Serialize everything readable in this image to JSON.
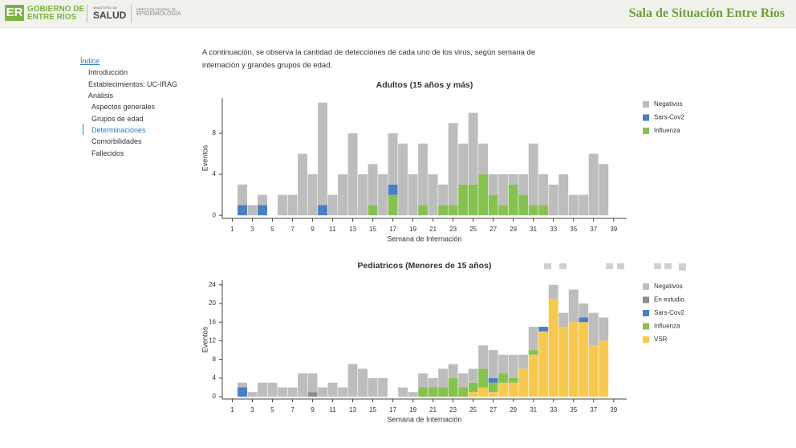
{
  "header": {
    "logo_mark": "ER",
    "gov_line1": "GOBIERNO DE",
    "gov_line2": "ENTRE RÍOS",
    "ministry_small": "MINISTERIO DE",
    "ministry": "SALUD",
    "direction_small": "DIRECCIÓN GENERAL DE",
    "direction": "EPIDEMIOLOGÍA",
    "title": "Sala de Situación Entre Ríos"
  },
  "nav": [
    "Índice",
    "Introducción",
    "Establecimientos: UC-IRAG",
    "Análisis",
    "Aspectos generales",
    "Grupos de edad",
    "Determinaciones",
    "Comorbilidades",
    "Fallecidos"
  ],
  "intro": "A continuación, se observa la cantidad de detecciones de cada uno de los virus, según semana de internación y grandes grupos de edad.",
  "chart_data": [
    {
      "type": "bar",
      "stacked": true,
      "title": "Adultos (15 años y más)",
      "x_label": "Semana de Internación",
      "y_label": "Eventos",
      "x": [
        2,
        3,
        4,
        5,
        6,
        7,
        8,
        9,
        10,
        11,
        12,
        13,
        14,
        15,
        16,
        17,
        18,
        19,
        20,
        21,
        22,
        23,
        24,
        25,
        26,
        27,
        28,
        29,
        30,
        31,
        32,
        33,
        34,
        35,
        36,
        37,
        38
      ],
      "series": [
        {
          "name": "Negativos",
          "color": "#bdbdbd",
          "values": [
            2,
            1,
            1,
            0,
            2,
            2,
            6,
            4,
            10,
            2,
            4,
            8,
            4,
            4,
            4,
            5,
            7,
            4,
            6,
            4,
            2,
            8,
            4,
            7,
            3,
            2,
            3,
            1,
            2,
            6,
            3,
            3,
            4,
            2,
            2,
            6,
            5
          ]
        },
        {
          "name": "Sars-Cov2",
          "color": "#4a7fc1",
          "values": [
            1,
            0,
            1,
            0,
            0,
            0,
            0,
            0,
            1,
            0,
            0,
            0,
            0,
            0,
            0,
            1,
            0,
            0,
            0,
            0,
            0,
            0,
            0,
            0,
            0,
            0,
            0,
            0,
            0,
            0,
            0,
            0,
            0,
            0,
            0,
            0,
            0
          ]
        },
        {
          "name": "Influenza",
          "color": "#86c24f",
          "values": [
            0,
            0,
            0,
            0,
            0,
            0,
            0,
            0,
            0,
            0,
            0,
            0,
            0,
            1,
            0,
            2,
            0,
            0,
            1,
            0,
            1,
            1,
            3,
            3,
            4,
            2,
            1,
            3,
            2,
            1,
            1,
            0,
            0,
            0,
            0,
            0,
            0
          ]
        }
      ],
      "xlim": [
        0,
        40.3
      ],
      "xticks": [
        1,
        3,
        5,
        7,
        9,
        11,
        13,
        15,
        17,
        19,
        21,
        23,
        25,
        27,
        29,
        31,
        33,
        35,
        37,
        39
      ],
      "ylim": [
        -0.3,
        11.45
      ],
      "yticks": [
        0,
        4,
        8
      ]
    },
    {
      "type": "bar",
      "stacked": true,
      "title": "Pediatricos (Menores de 15 años)",
      "x_label": "Semana de Internación",
      "y_label": "Eventos",
      "x": [
        2,
        3,
        4,
        5,
        6,
        7,
        8,
        9,
        10,
        11,
        12,
        13,
        14,
        15,
        16,
        17,
        18,
        19,
        20,
        21,
        22,
        23,
        24,
        25,
        26,
        27,
        28,
        29,
        30,
        31,
        32,
        33,
        34,
        35,
        36,
        37,
        38
      ],
      "series": [
        {
          "name": "Negativos",
          "color": "#bdbdbd",
          "values": [
            1,
            1,
            3,
            3,
            2,
            2,
            5,
            4,
            2,
            3,
            2,
            7,
            6,
            4,
            4,
            0,
            2,
            1,
            3,
            2,
            4,
            3,
            3,
            3,
            5,
            6,
            4,
            5,
            3,
            5,
            0,
            3,
            3,
            7,
            3,
            7,
            5
          ]
        },
        {
          "name": "En estudio",
          "color": "#8c8c8c",
          "values": [
            0,
            0,
            0,
            0,
            0,
            0,
            0,
            1,
            0,
            0,
            0,
            0,
            0,
            0,
            0,
            0,
            0,
            0,
            0,
            0,
            0,
            0,
            0,
            0,
            0,
            0,
            0,
            0,
            0,
            0,
            0,
            0,
            0,
            0,
            0,
            0,
            0
          ]
        },
        {
          "name": "Sars-Cov2",
          "color": "#4a7fc1",
          "values": [
            2,
            0,
            0,
            0,
            0,
            0,
            0,
            0,
            0,
            0,
            0,
            0,
            0,
            0,
            0,
            0,
            0,
            0,
            0,
            0,
            0,
            0,
            0,
            0,
            0,
            1,
            0,
            0,
            0,
            0,
            1,
            0,
            0,
            0,
            1,
            0,
            0
          ]
        },
        {
          "name": "Influenza",
          "color": "#86c24f",
          "values": [
            0,
            0,
            0,
            0,
            0,
            0,
            0,
            0,
            0,
            0,
            0,
            0,
            0,
            0,
            0,
            0,
            0,
            0,
            2,
            2,
            2,
            4,
            2,
            2,
            4,
            2,
            2,
            1,
            0,
            1,
            0,
            0,
            0,
            0,
            0,
            0,
            0
          ]
        },
        {
          "name": "VSR",
          "color": "#f8c94f",
          "values": [
            0,
            0,
            0,
            0,
            0,
            0,
            0,
            0,
            0,
            0,
            0,
            0,
            0,
            0,
            0,
            0,
            0,
            0,
            0,
            0,
            0,
            0,
            0,
            1,
            2,
            1,
            3,
            3,
            6,
            9,
            14,
            21,
            15,
            16,
            16,
            11,
            12
          ]
        }
      ],
      "xlim": [
        0,
        40.3
      ],
      "xticks": [
        1,
        3,
        5,
        7,
        9,
        11,
        13,
        15,
        17,
        19,
        21,
        23,
        25,
        27,
        29,
        31,
        33,
        35,
        37,
        39
      ],
      "ylim": [
        -0.5,
        25
      ],
      "yticks": [
        0,
        4,
        8,
        12,
        16,
        20,
        24
      ]
    }
  ]
}
